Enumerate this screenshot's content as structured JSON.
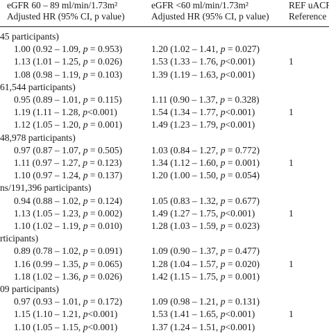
{
  "header": {
    "col1_line1": "eGFR 60 – 89 ml/min/1.73m²",
    "col1_line2": "Adjusted HR (95% CI, p value)",
    "col2_line1": "eGFR <60 ml/min/1.73m²",
    "col2_line2": "Adjusted HR (95% CI, p value)",
    "col3_line1": "REF uACR",
    "col3_line2": "Reference"
  },
  "sections": [
    {
      "label": "45 participants)",
      "rows": [
        {
          "col1": "1.00 (0.92 – 1.09, p = 0.953)",
          "col2": "1.20 (1.02 – 1.41, p = 0.027)",
          "col3": ""
        },
        {
          "col1": "1.13 (1.01 – 1.25, p = 0.026)",
          "col2": "1.53 (1.33 – 1.76, p<0.001)",
          "col3": "1"
        },
        {
          "col1": "1.08 (0.98 – 1.19, p = 0.103)",
          "col2": "1.39 (1.19 – 1.63, p<0.001)",
          "col3": ""
        }
      ]
    },
    {
      "label": "61,544 participants)",
      "rows": [
        {
          "col1": "0.95 (0.89 – 1.01, p = 0.115)",
          "col2": "1.11 (0.90 – 1.37, p = 0.328)",
          "col3": ""
        },
        {
          "col1": "1.19 (1.11 – 1.28, p<0.001)",
          "col2": "1.54 (1.34 – 1.77, p<0.001)",
          "col3": "1"
        },
        {
          "col1": "1.12 (1.05 – 1.20, p = 0.001)",
          "col2": "1.49 (1.23 – 1.79, p<0.001)",
          "col3": ""
        }
      ]
    },
    {
      "label": "48,978 participants)",
      "rows": [
        {
          "col1": "0.97 (0.87 – 1.07, p = 0.505)",
          "col2": "1.03 (0.84 – 1.27, p = 0.772)",
          "col3": ""
        },
        {
          "col1": "1.11 (0.97 – 1.27, p = 0.123)",
          "col2": "1.34 (1.12 – 1.60, p = 0.001)",
          "col3": "1"
        },
        {
          "col1": "1.10 (0.97 – 1.24, p = 0.137)",
          "col2": "1.20 (1.00 – 1.50, p = 0.054)",
          "col3": ""
        }
      ]
    },
    {
      "label": "ns/191,396 participants)",
      "rows": [
        {
          "col1": "0.94 (0.88 – 1.02, p = 0.124)",
          "col2": "1.05 (0.83 – 1.32, p = 0.677)",
          "col3": ""
        },
        {
          "col1": "1.13 (1.05 – 1.23, p = 0.002)",
          "col2": "1.49 (1.27 – 1.75, p<0.001)",
          "col3": "1"
        },
        {
          "col1": "1.10 (1.02 – 1.19, p = 0.010)",
          "col2": "1.28 (1.03 – 1.59, p = 0.023)",
          "col3": ""
        }
      ]
    },
    {
      "label": "rticipants)",
      "rows": [
        {
          "col1": "0.89 (0.78 – 1.02, p = 0.091)",
          "col2": "1.09 (0.90 – 1.37, p = 0.477)",
          "col3": ""
        },
        {
          "col1": "1.16 (0.99 – 1.35, p = 0.065)",
          "col2": "1.28 (1.04 – 1.57, p = 0.020)",
          "col3": "1"
        },
        {
          "col1": "1.18 (1.02 – 1.36, p = 0.026)",
          "col2": "1.42 (1.15 – 1.75, p = 0.001)",
          "col3": ""
        }
      ]
    },
    {
      "label": "09 participants)",
      "rows": [
        {
          "col1": "0.97 (0.93 – 1.01, p = 0.172)",
          "col2": "1.09 (0.98 – 1.21, p = 0.131)",
          "col3": ""
        },
        {
          "col1": "1.15 (1.10 – 1.21, p<0.001)",
          "col2": "1.53 (1.41 – 1.65, p<0.001)",
          "col3": "1"
        },
        {
          "col1": "1.10 (1.05 – 1.15, p<0.001)",
          "col2": "1.37 (1.24 – 1.51, p<0.001)",
          "col3": ""
        }
      ]
    }
  ]
}
